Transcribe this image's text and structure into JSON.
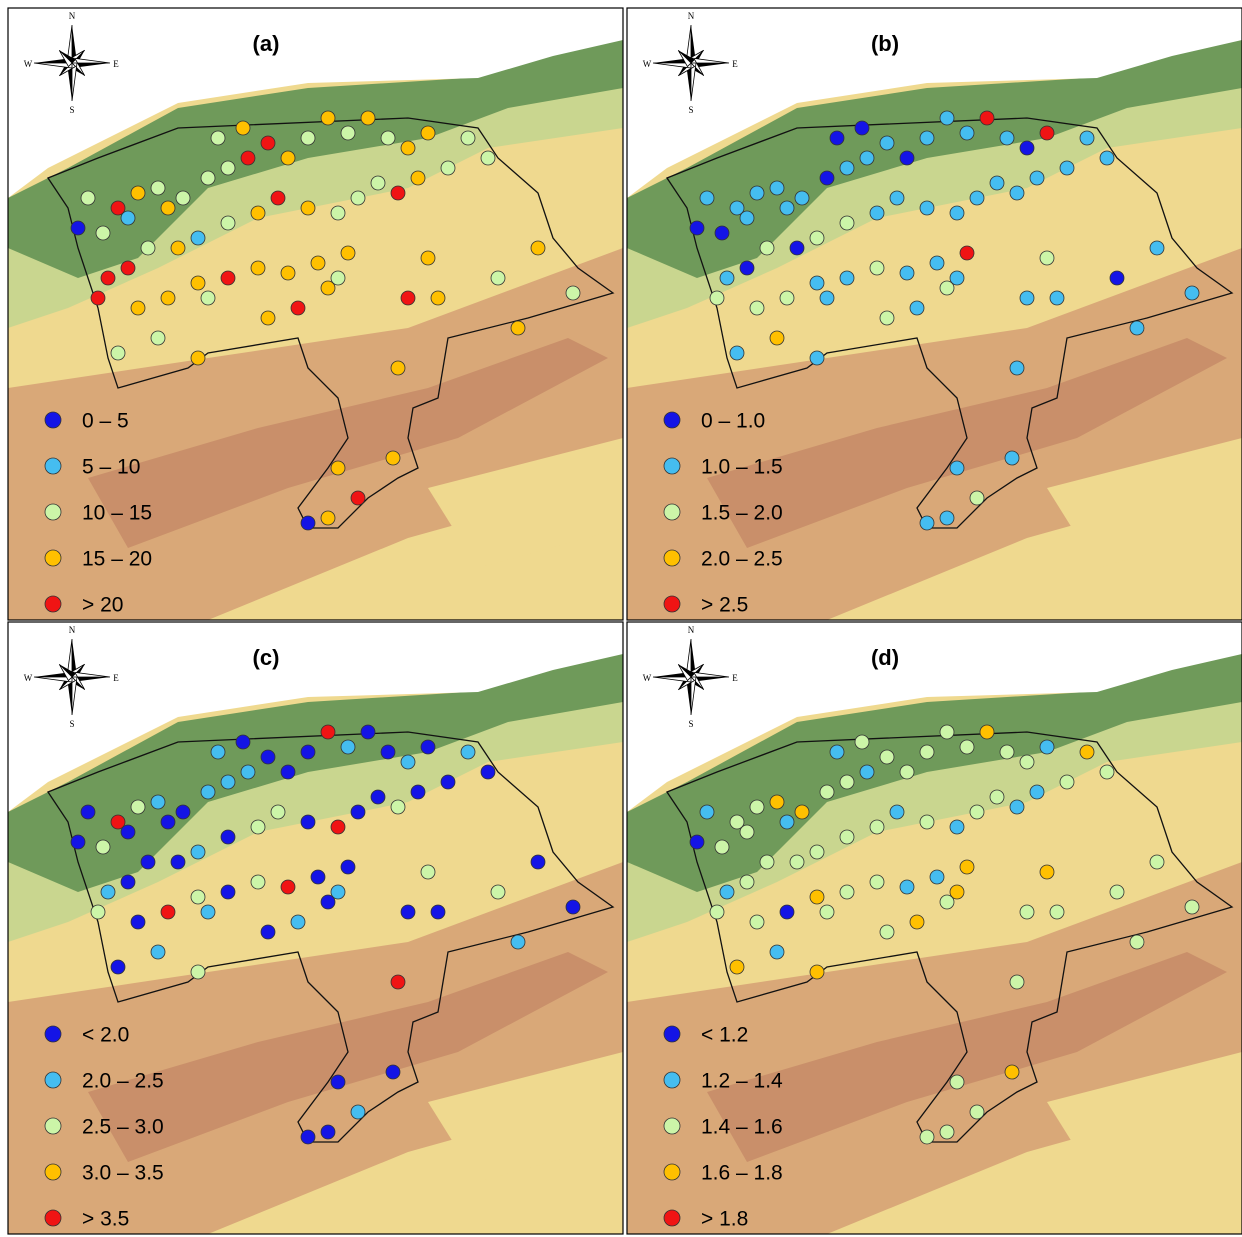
{
  "colors": [
    "#1414e6",
    "#45bdf0",
    "#ccf5a8",
    "#ffc000",
    "#f01414"
  ],
  "compass": {
    "n": "N",
    "s": "S",
    "e": "E",
    "w": "W"
  },
  "panels": [
    {
      "label": "(a)",
      "legend": [
        "0 – 5",
        "5 – 10",
        "10 – 15",
        "15 – 20",
        "> 20"
      ]
    },
    {
      "label": "(b)",
      "legend": [
        "0 – 1.0",
        "1.0 – 1.5",
        "1.5 – 2.0",
        "2.0 – 2.5",
        "> 2.5"
      ]
    },
    {
      "label": "(c)",
      "legend": [
        "< 2.0",
        "2.0 – 2.5",
        "2.5 – 3.0",
        "3.0 – 3.5",
        "> 3.5"
      ]
    },
    {
      "label": "(d)",
      "legend": [
        "< 1.2",
        "1.2 – 1.4",
        "1.4 – 1.6",
        "1.6 – 1.8",
        "> 1.8"
      ]
    }
  ]
}
